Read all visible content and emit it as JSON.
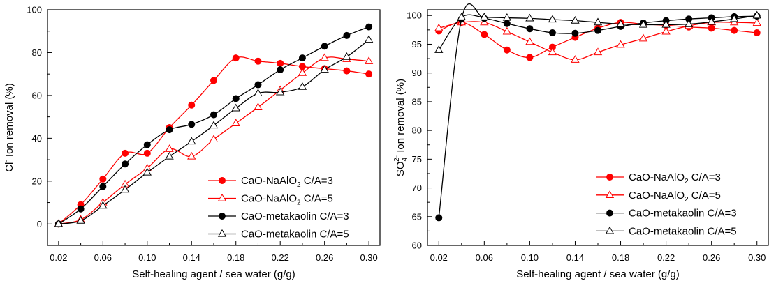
{
  "chart_data": [
    {
      "type": "line",
      "panel": "left",
      "xlabel": "Self-healing agent / sea water (g/g)",
      "ylabel_parts": [
        "Cl",
        "-",
        " Ion removal (%)"
      ],
      "xlim": [
        0.01,
        0.31
      ],
      "ylim": [
        -10,
        100
      ],
      "xticks": [
        "0.02",
        "0.06",
        "0.10",
        "0.14",
        "0.18",
        "0.22",
        "0.26",
        "0.30"
      ],
      "yticks": [
        "0",
        "20",
        "40",
        "60",
        "80",
        "100"
      ],
      "grid": false,
      "legend_position": "bottom-right",
      "x": [
        0.02,
        0.04,
        0.06,
        0.08,
        0.1,
        0.12,
        0.14,
        0.16,
        0.18,
        0.2,
        0.22,
        0.24,
        0.26,
        0.28,
        0.3
      ],
      "series": [
        {
          "name": "CaO-NaAlO2 C/A=3",
          "legend_parts": [
            "CaO-NaAlO",
            "2",
            " C/A=3"
          ],
          "color": "#ff0000",
          "marker": "filled-circle",
          "values": [
            0,
            9,
            21,
            33,
            33,
            45,
            55.5,
            67,
            77.5,
            76,
            75,
            73.5,
            72.5,
            71.5,
            70
          ]
        },
        {
          "name": "CaO-NaAlO2 C/A=5",
          "legend_parts": [
            "CaO-NaAlO",
            "2",
            " C/A=5"
          ],
          "color": "#ff0000",
          "marker": "open-triangle",
          "values": [
            0,
            2,
            10,
            18.5,
            26,
            35,
            31.5,
            39.5,
            47,
            54.5,
            62.5,
            70.5,
            77.5,
            77,
            76
          ]
        },
        {
          "name": "CaO-metakaolin C/A=3",
          "legend_parts": [
            "CaO-metakaolin C/A=3"
          ],
          "color": "#000000",
          "marker": "filled-circle",
          "values": [
            0,
            7,
            17.5,
            28,
            37,
            44,
            46.5,
            51,
            58.5,
            65,
            72,
            77.5,
            83,
            88,
            92
          ]
        },
        {
          "name": "CaO-metakaolin C/A=5",
          "legend_parts": [
            "CaO-metakaolin C/A=5"
          ],
          "color": "#000000",
          "marker": "open-triangle",
          "values": [
            0,
            1.5,
            8.5,
            16,
            24,
            31.5,
            38.5,
            46,
            54,
            61,
            61.5,
            64,
            72,
            78,
            86
          ]
        }
      ]
    },
    {
      "type": "line",
      "panel": "right",
      "xlabel": "Self-healing agent / sea water (g/g)",
      "ylabel_parts": [
        "SO",
        "4",
        "2-",
        " Ion removal (%)"
      ],
      "xlim": [
        0.01,
        0.31
      ],
      "ylim": [
        60,
        101
      ],
      "xticks": [
        "0.02",
        "0.06",
        "0.10",
        "0.14",
        "0.18",
        "0.22",
        "0.26",
        "0.30"
      ],
      "yticks": [
        "60",
        "65",
        "70",
        "75",
        "80",
        "85",
        "90",
        "95",
        "100"
      ],
      "grid": false,
      "legend_position": "bottom-right",
      "x": [
        0.02,
        0.04,
        0.06,
        0.08,
        0.1,
        0.12,
        0.14,
        0.16,
        0.18,
        0.2,
        0.22,
        0.24,
        0.26,
        0.28,
        0.3
      ],
      "series": [
        {
          "name": "CaO-NaAlO2 C/A=3",
          "legend_parts": [
            "CaO-NaAlO",
            "2",
            " C/A=3"
          ],
          "color": "#ff0000",
          "marker": "filled-circle",
          "values": [
            97.3,
            98.8,
            96.7,
            94,
            92.7,
            94.5,
            96.2,
            97.8,
            98.8,
            98.5,
            98.3,
            98,
            97.8,
            97.4,
            97
          ]
        },
        {
          "name": "CaO-NaAlO2 C/A=5",
          "legend_parts": [
            "CaO-NaAlO",
            "2",
            " C/A=5"
          ],
          "color": "#ff0000",
          "marker": "open-triangle",
          "values": [
            97.8,
            98.8,
            98.8,
            97.2,
            95.4,
            93.6,
            92.3,
            93.6,
            94.9,
            96,
            97.2,
            98.2,
            98.8,
            98.8,
            98.7
          ]
        },
        {
          "name": "CaO-metakaolin C/A=3",
          "legend_parts": [
            "CaO-metakaolin C/A=3"
          ],
          "color": "#000000",
          "marker": "filled-circle",
          "values": [
            64.8,
            99.4,
            99.5,
            98.6,
            97.7,
            97,
            96.9,
            97.4,
            98.1,
            98.7,
            99.1,
            99.4,
            99.6,
            99.8,
            99.9
          ]
        },
        {
          "name": "CaO-metakaolin C/A=5",
          "legend_parts": [
            "CaO-metakaolin C/A=5"
          ],
          "color": "#000000",
          "marker": "open-triangle",
          "values": [
            94,
            99.7,
            99.7,
            99.6,
            99.5,
            99.3,
            99.1,
            98.8,
            98.5,
            98.4,
            98.4,
            98.5,
            98.9,
            99.4,
            100
          ]
        }
      ]
    }
  ]
}
